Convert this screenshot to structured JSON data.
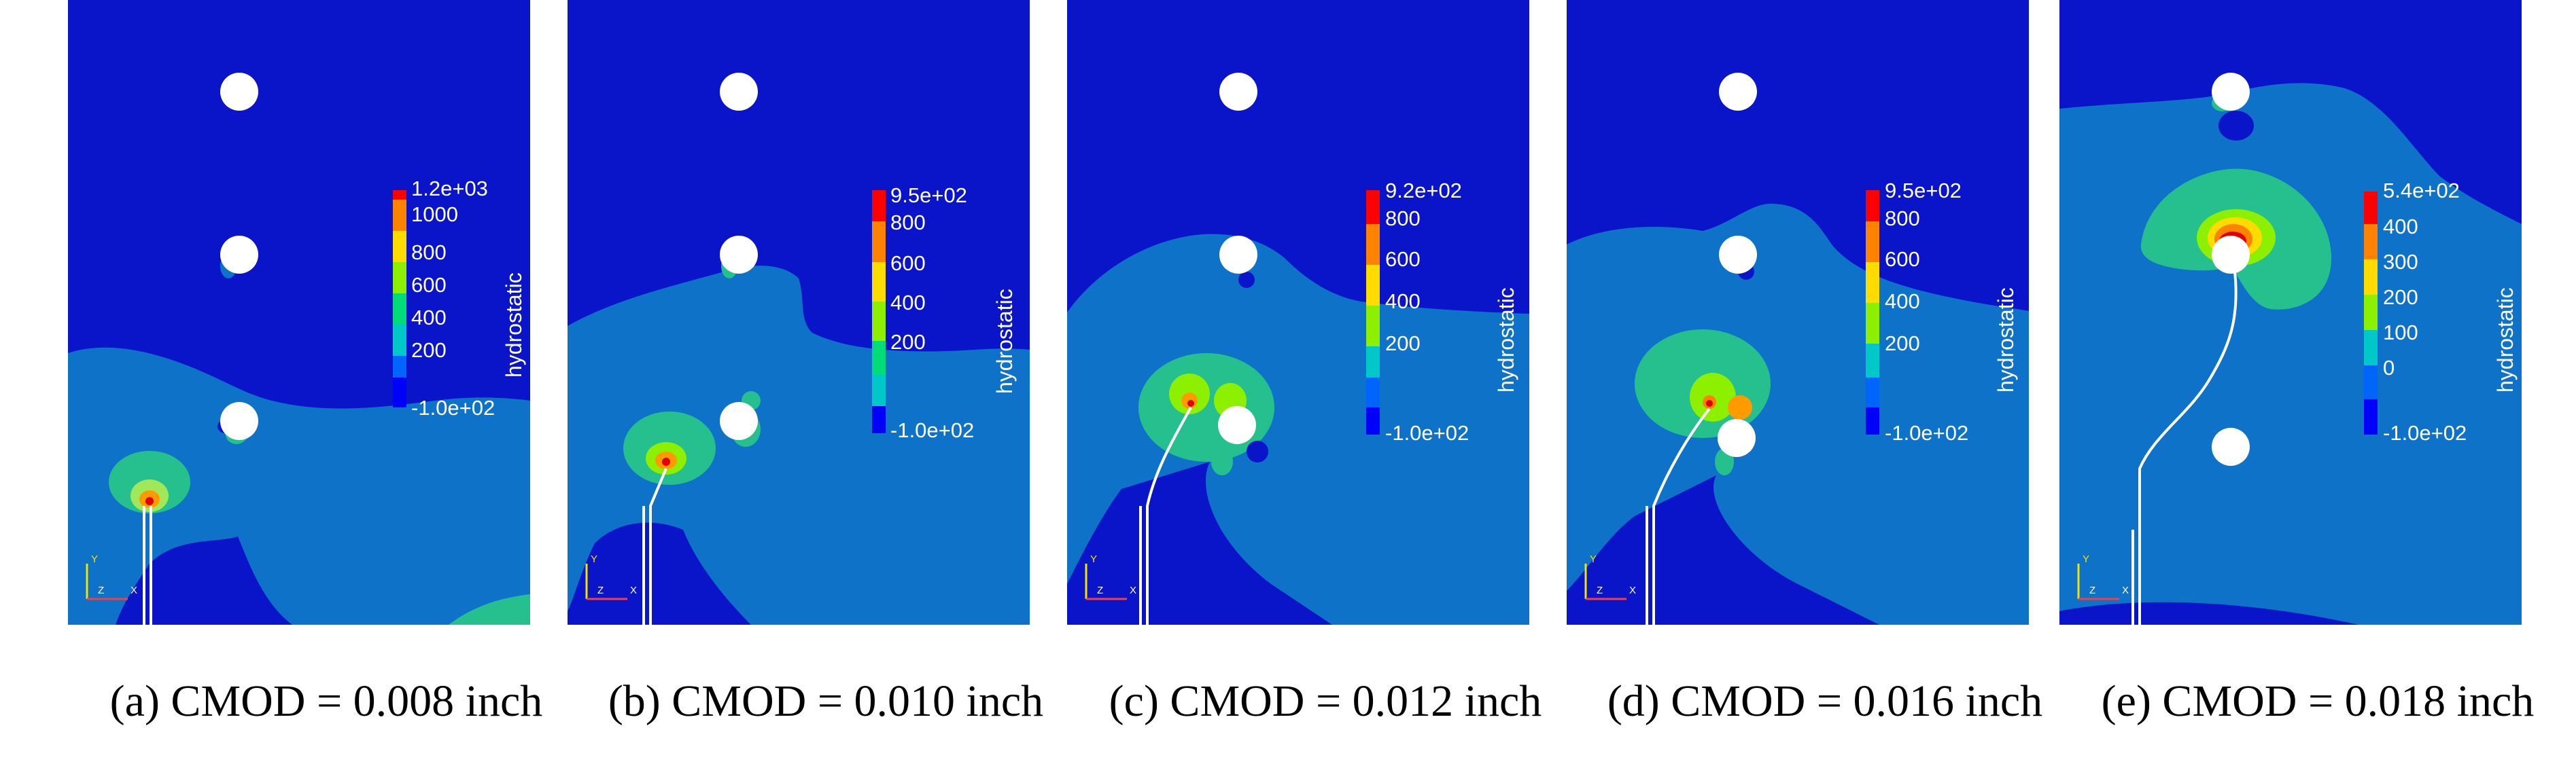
{
  "colors": {
    "background": "#ffffff",
    "field_low": "#0a14c8",
    "field_mid": "#0f72c9",
    "field_green": "#26c08f",
    "contour_ramp": [
      "#0000ff",
      "#0064ff",
      "#00c8c8",
      "#00dc78",
      "#8cf000",
      "#ffdc00",
      "#ff8200",
      "#ff0000"
    ]
  },
  "colorbar_title": "hydrostatic",
  "axes_triad": {
    "y": "Y",
    "z": "Z",
    "x": "X"
  },
  "panels": [
    {
      "caption": "(a) CMOD = 0.008 inch",
      "colorbar_labels": [
        "1.2e+03",
        "1000",
        "800",
        "600",
        "400",
        "200",
        "-1.0e+02"
      ]
    },
    {
      "caption": "(b) CMOD = 0.010 inch",
      "colorbar_labels": [
        "9.5e+02",
        "800",
        "600",
        "400",
        "200",
        "-1.0e+02"
      ]
    },
    {
      "caption": "(c) CMOD = 0.012 inch",
      "colorbar_labels": [
        "9.2e+02",
        "800",
        "600",
        "400",
        "200",
        "-1.0e+02"
      ]
    },
    {
      "caption": "(d) CMOD = 0.016 inch",
      "colorbar_labels": [
        "9.5e+02",
        "800",
        "600",
        "400",
        "200",
        "-1.0e+02"
      ]
    },
    {
      "caption": "(e) CMOD = 0.018 inch",
      "colorbar_labels": [
        "5.4e+02",
        "400",
        "300",
        "200",
        "100",
        "0",
        "-1.0e+02"
      ]
    }
  ]
}
